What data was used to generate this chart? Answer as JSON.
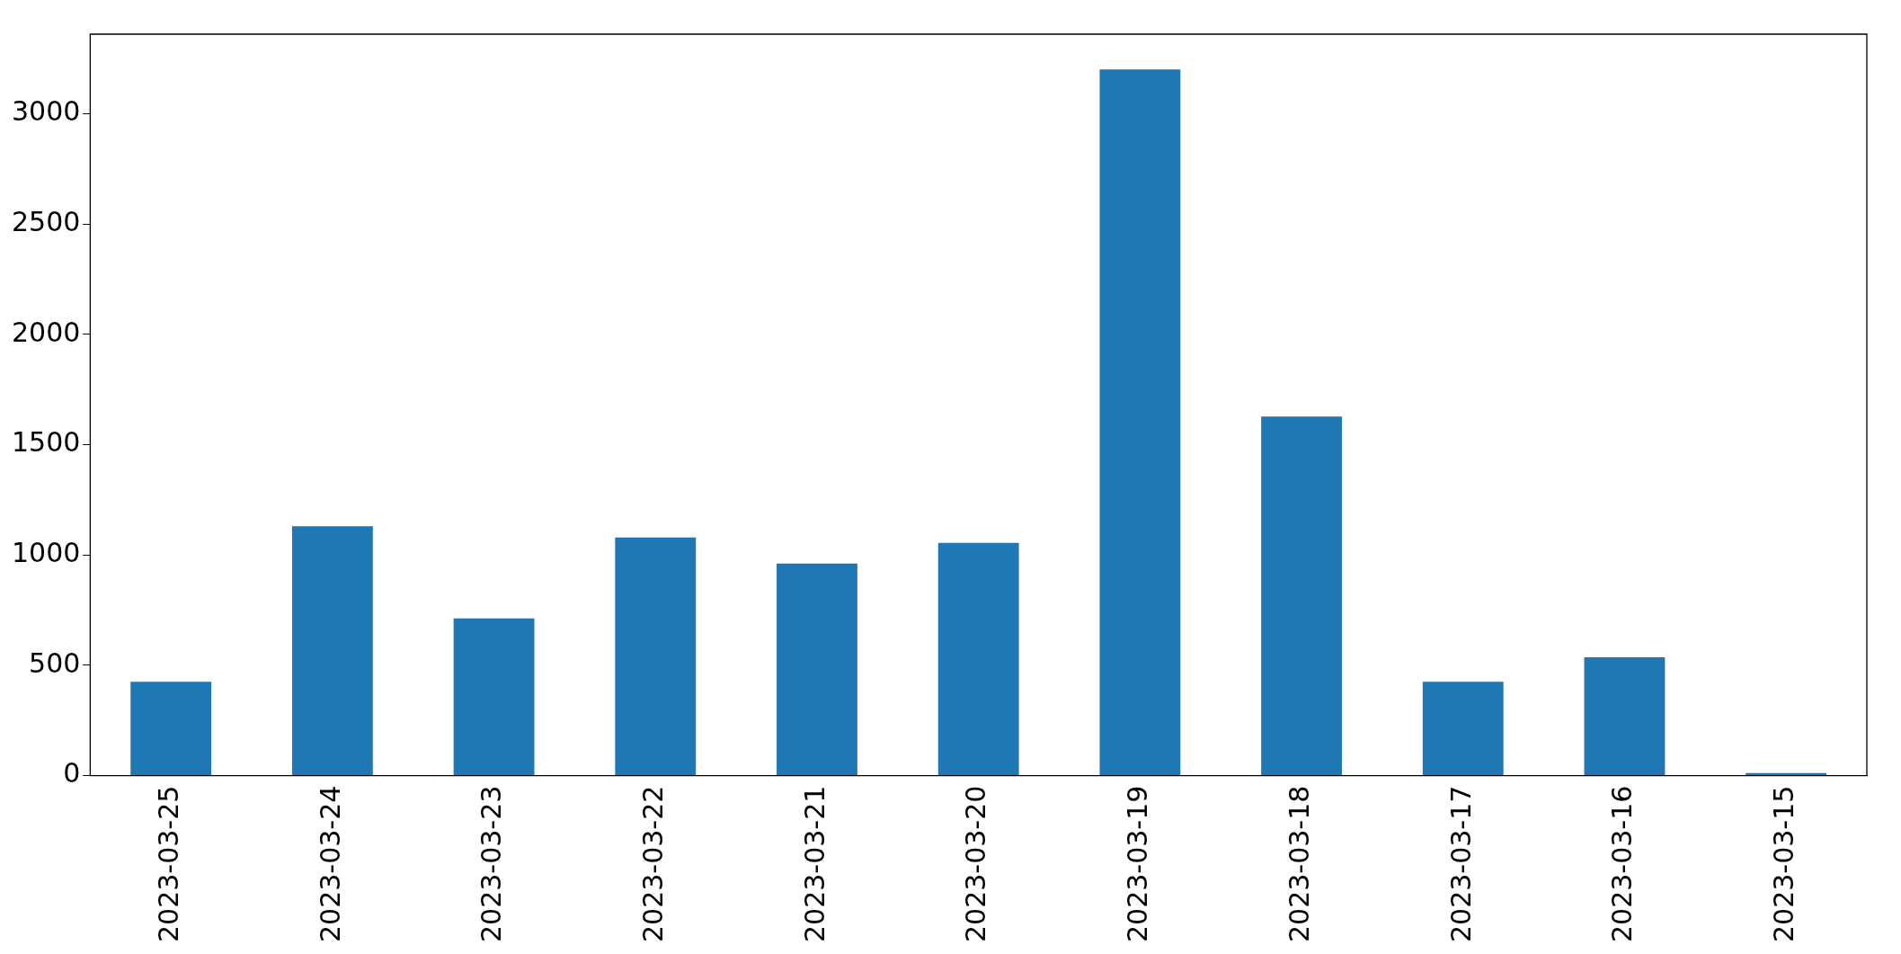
{
  "chart_data": {
    "type": "bar",
    "categories": [
      "2023-03-25",
      "2023-03-24",
      "2023-03-23",
      "2023-03-22",
      "2023-03-21",
      "2023-03-20",
      "2023-03-19",
      "2023-03-18",
      "2023-03-17",
      "2023-03-16",
      "2023-03-15"
    ],
    "values": [
      425,
      1130,
      713,
      1079,
      961,
      1055,
      3200,
      1627,
      425,
      536,
      12
    ],
    "color": "#1f77b4",
    "ylim": [
      0,
      3360
    ],
    "yticks": [
      0,
      500,
      1000,
      1500,
      2000,
      2500,
      3000
    ],
    "grid": false,
    "legend": false
  }
}
